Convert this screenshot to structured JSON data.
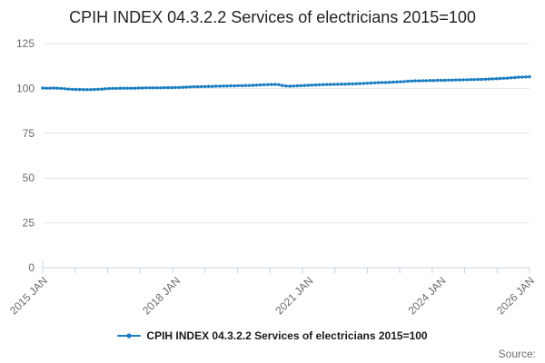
{
  "chart": {
    "title": "CPIH INDEX 04.3.2.2 Services of electricians 2015=100"
  },
  "legend": {
    "label": "CPIH INDEX 04.3.2.2 Services of electricians 2015=100",
    "marker_icon": "line-dot-marker"
  },
  "footer": {
    "source": "Source:"
  },
  "colors": {
    "line": "#1b7ec2",
    "grid": "#e4e4e4",
    "axis": "#c5d0e0",
    "tick_label": "#6b6b6b",
    "title_text": "#222222",
    "legend_text": "#1a1a1a",
    "source_text": "#6e6e6e"
  },
  "chart_data": {
    "type": "line",
    "title": "CPIH INDEX 04.3.2.2 Services of electricians 2015=100",
    "xlabel": "",
    "ylabel": "",
    "ylim": [
      0,
      125
    ],
    "y_ticks": [
      0,
      25,
      50,
      75,
      100,
      125
    ],
    "x_tick_labels": [
      "2015 JAN",
      "2018 JAN",
      "2021 JAN",
      "2024 JAN",
      "2026 JAN"
    ],
    "x_tick_label_months": [
      0,
      36,
      72,
      108,
      132
    ],
    "months_total": 132,
    "minor_tick_count": 16,
    "grid": true,
    "legend_position": "bottom-center",
    "series": [
      {
        "name": "CPIH INDEX 04.3.2.2 Services of electricians 2015=100",
        "start": "2015 JAN",
        "end": "2026 JAN",
        "values": [
          100.2,
          100.1,
          100.1,
          100.2,
          100.1,
          100.0,
          99.8,
          99.6,
          99.5,
          99.4,
          99.4,
          99.3,
          99.3,
          99.3,
          99.4,
          99.5,
          99.6,
          99.8,
          99.9,
          100.0,
          100.0,
          100.1,
          100.1,
          100.1,
          100.1,
          100.1,
          100.2,
          100.2,
          100.3,
          100.3,
          100.3,
          100.3,
          100.3,
          100.4,
          100.4,
          100.4,
          100.5,
          100.5,
          100.6,
          100.7,
          100.8,
          100.9,
          100.9,
          101.0,
          101.0,
          101.1,
          101.1,
          101.2,
          101.2,
          101.3,
          101.3,
          101.4,
          101.4,
          101.5,
          101.5,
          101.6,
          101.6,
          101.7,
          101.8,
          101.9,
          102.0,
          102.1,
          102.2,
          102.2,
          102.1,
          101.6,
          101.3,
          101.2,
          101.3,
          101.4,
          101.5,
          101.6,
          101.7,
          101.8,
          101.9,
          102.0,
          102.1,
          102.2,
          102.2,
          102.3,
          102.3,
          102.4,
          102.4,
          102.5,
          102.5,
          102.6,
          102.7,
          102.8,
          102.9,
          103.0,
          103.1,
          103.2,
          103.3,
          103.3,
          103.4,
          103.5,
          103.6,
          103.7,
          103.8,
          104.0,
          104.1,
          104.2,
          104.2,
          104.3,
          104.3,
          104.4,
          104.4,
          104.5,
          104.5,
          104.5,
          104.6,
          104.6,
          104.7,
          104.7,
          104.8,
          104.8,
          104.9,
          104.9,
          105.0,
          105.0,
          105.1,
          105.2,
          105.3,
          105.4,
          105.5,
          105.6,
          105.7,
          105.9,
          106.0,
          106.2,
          106.3,
          106.4,
          106.5
        ]
      }
    ]
  }
}
